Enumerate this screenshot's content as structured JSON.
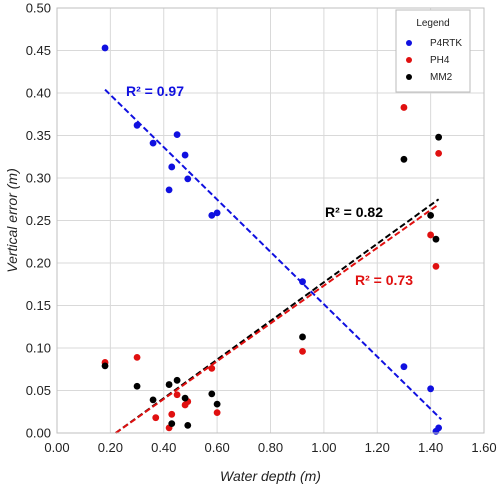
{
  "chart_data": {
    "type": "scatter",
    "xlabel": "Water depth (m)",
    "ylabel": "Vertical error (m)",
    "xlim": [
      0,
      1.6
    ],
    "ylim": [
      0,
      0.5
    ],
    "x_ticks": [
      "0.00",
      "0.20",
      "0.40",
      "0.60",
      "0.80",
      "1.00",
      "1.20",
      "1.40",
      "1.60"
    ],
    "y_ticks": [
      "0.00",
      "0.05",
      "0.10",
      "0.15",
      "0.20",
      "0.25",
      "0.30",
      "0.35",
      "0.40",
      "0.45",
      "0.50"
    ],
    "grid": "vertical-and-horizontal",
    "legend": {
      "title": "Legend",
      "placement": "top-right"
    },
    "series": [
      {
        "name": "P4RTK",
        "color": "#1010e0",
        "points": [
          [
            0.18,
            0.453
          ],
          [
            0.3,
            0.362
          ],
          [
            0.36,
            0.341
          ],
          [
            0.43,
            0.313
          ],
          [
            0.42,
            0.286
          ],
          [
            0.45,
            0.351
          ],
          [
            0.48,
            0.327
          ],
          [
            0.49,
            0.299
          ],
          [
            0.58,
            0.256
          ],
          [
            0.6,
            0.259
          ],
          [
            0.92,
            0.178
          ],
          [
            1.3,
            0.078
          ],
          [
            1.4,
            0.052
          ],
          [
            1.42,
            0.002
          ],
          [
            1.43,
            0.006
          ]
        ],
        "trend": {
          "x": [
            0.18,
            1.44
          ],
          "y": [
            0.404,
            0.016
          ]
        },
        "r2_label": "R² = 0.97"
      },
      {
        "name": "PH4",
        "color": "#e01010",
        "points": [
          [
            0.18,
            0.083
          ],
          [
            0.3,
            0.089
          ],
          [
            0.37,
            0.018
          ],
          [
            0.42,
            0.006
          ],
          [
            0.43,
            0.022
          ],
          [
            0.45,
            0.045
          ],
          [
            0.48,
            0.033
          ],
          [
            0.49,
            0.037
          ],
          [
            0.58,
            0.076
          ],
          [
            0.6,
            0.024
          ],
          [
            0.92,
            0.096
          ],
          [
            1.3,
            0.383
          ],
          [
            1.4,
            0.233
          ],
          [
            1.42,
            0.196
          ],
          [
            1.43,
            0.329
          ]
        ],
        "trend": {
          "x": [
            0.22,
            1.43
          ],
          "y": [
            0.0,
            0.269
          ]
        },
        "r2_label": "R² = 0.73"
      },
      {
        "name": "MM2",
        "color": "#000000",
        "points": [
          [
            0.18,
            0.079
          ],
          [
            0.3,
            0.055
          ],
          [
            0.36,
            0.039
          ],
          [
            0.42,
            0.057
          ],
          [
            0.43,
            0.011
          ],
          [
            0.45,
            0.062
          ],
          [
            0.48,
            0.041
          ],
          [
            0.49,
            0.009
          ],
          [
            0.58,
            0.046
          ],
          [
            0.6,
            0.034
          ],
          [
            0.92,
            0.113
          ],
          [
            1.3,
            0.322
          ],
          [
            1.4,
            0.256
          ],
          [
            1.42,
            0.228
          ],
          [
            1.43,
            0.348
          ]
        ],
        "trend": {
          "x": [
            0.22,
            1.43
          ],
          "y": [
            0.0,
            0.275
          ]
        },
        "r2_label": "R² = 0.82"
      }
    ]
  }
}
